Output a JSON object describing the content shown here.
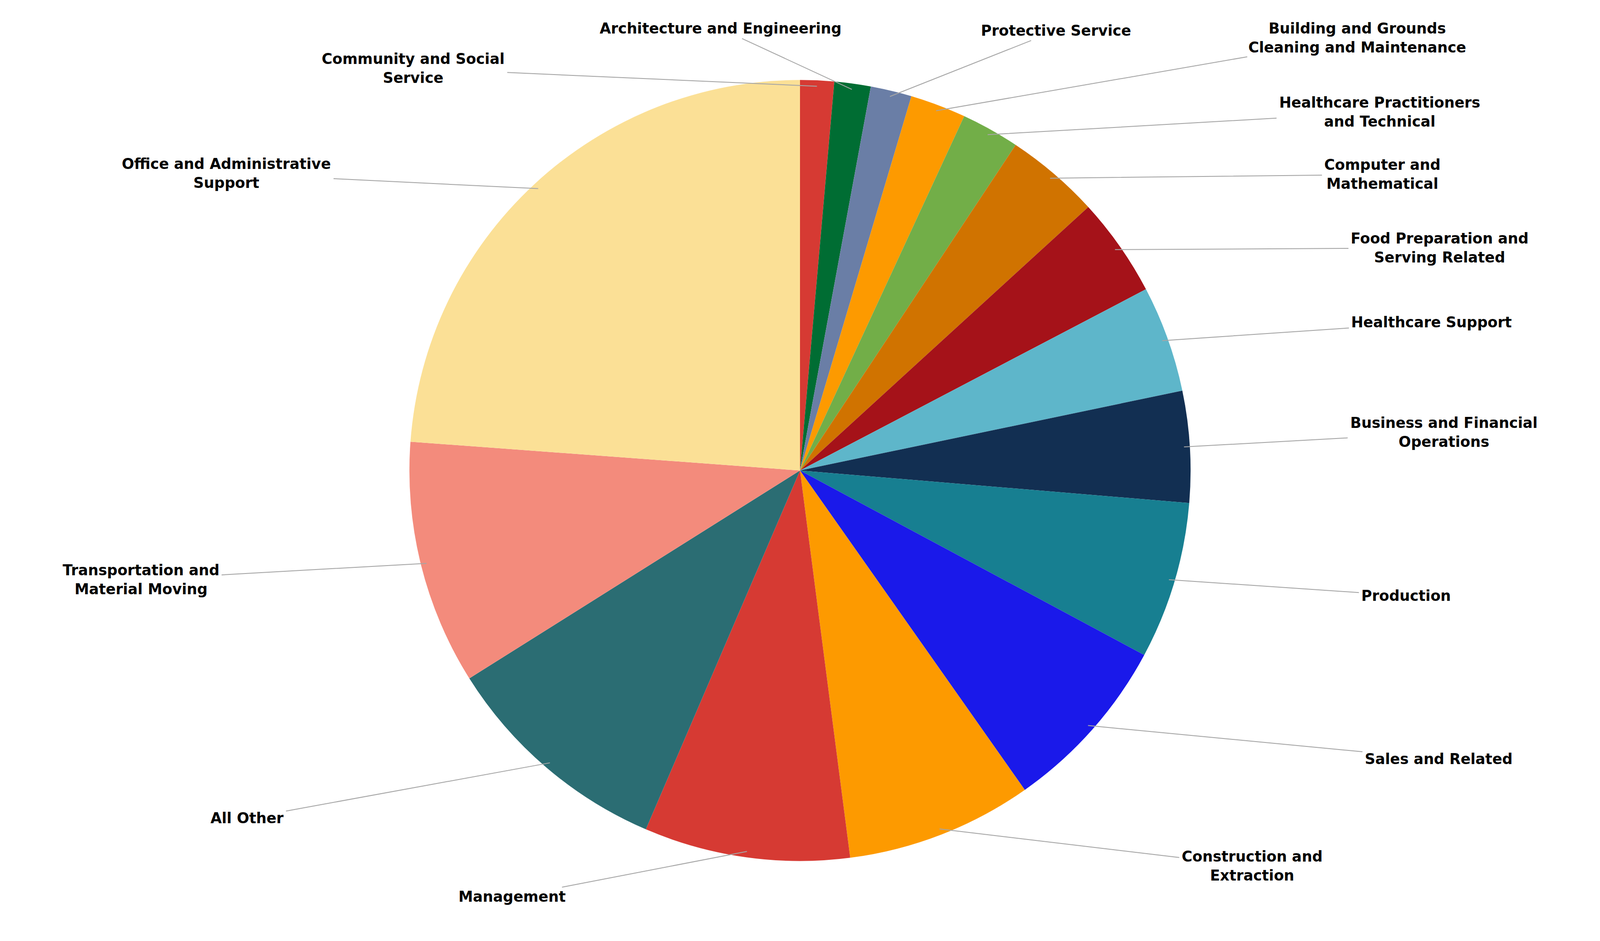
{
  "chart_data": {
    "type": "pie",
    "categories": [
      "Community and Social Service",
      "Architecture and Engineering",
      "Protective Service",
      "Building and Grounds Cleaning and Maintenance",
      "Healthcare Practitioners and Technical",
      "Computer and Mathematical",
      "Food Preparation and Serving Related",
      "Healthcare Support",
      "Business and Financial Operations",
      "Production",
      "Sales and Related",
      "Construction and Extraction",
      "Management",
      "All Other",
      "Transportation and Material Moving",
      "Office and Administrative Support"
    ],
    "values": [
      1.4,
      1.5,
      1.7,
      2.3,
      2.4,
      3.9,
      4.1,
      4.4,
      4.6,
      6.5,
      7.4,
      7.7,
      8.5,
      9.6,
      10.1,
      23.8
    ],
    "colors": [
      "#d63a33",
      "#006d33",
      "#6a7ea6",
      "#fd9a00",
      "#72ae48",
      "#d07300",
      "#a51219",
      "#5eb6ca",
      "#122f52",
      "#177f91",
      "#1a19ea",
      "#fd9a00",
      "#d63a33",
      "#2b6d73",
      "#f38b7c",
      "#fbe096"
    ]
  }
}
